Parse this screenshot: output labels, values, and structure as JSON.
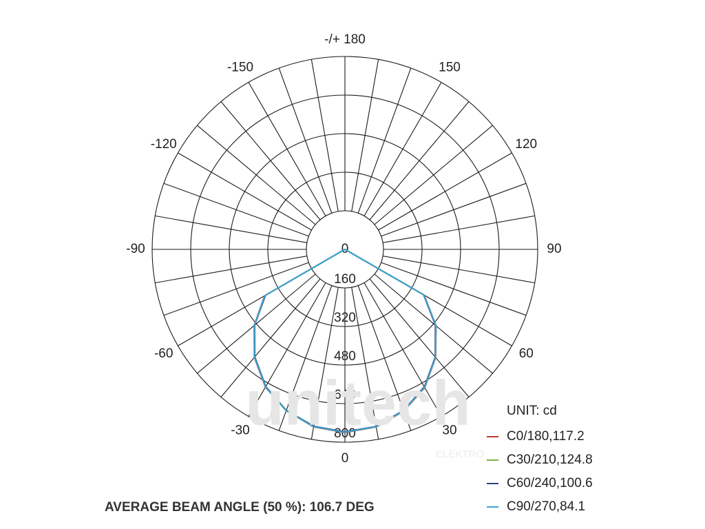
{
  "chart_data": {
    "type": "polar",
    "rlim": [
      0,
      800
    ],
    "rticks": [
      0,
      160,
      320,
      480,
      640,
      800
    ],
    "thetalim": [
      -180,
      180
    ],
    "thetaticks": [
      {
        "value": 180,
        "label": "-/+ 180"
      },
      150,
      120,
      90,
      60,
      30,
      0,
      -30,
      -60,
      -90,
      -120,
      -150
    ],
    "theta_gridlines": [
      -170,
      -160,
      -150,
      -140,
      -130,
      -120,
      -110,
      -100,
      -90,
      -80,
      -70,
      -60,
      -50,
      -40,
      -30,
      -20,
      -10,
      0,
      10,
      20,
      30,
      40,
      50,
      60,
      70,
      80,
      90,
      100,
      110,
      120,
      130,
      140,
      150,
      160,
      170,
      180
    ],
    "x": [
      -90,
      -80,
      -70,
      -60,
      -50,
      -40,
      -30,
      -20,
      -10,
      0,
      10,
      20,
      30,
      40,
      50,
      60,
      70,
      80,
      90
    ],
    "series": [
      {
        "name": "C0/180,117.2",
        "color": "#c0392b",
        "values": [
          0,
          0,
          0,
          385,
          492,
          585,
          660,
          712,
          748,
          760,
          748,
          714,
          662,
          586,
          494,
          380,
          0,
          0,
          0
        ]
      },
      {
        "name": "C30/210,124.8",
        "color": "#7cb342",
        "values": [
          0,
          0,
          0,
          382,
          490,
          583,
          658,
          713,
          746,
          758,
          747,
          713,
          660,
          584,
          492,
          378,
          0,
          0,
          0
        ]
      },
      {
        "name": "C60/240,100.6",
        "color": "#2e3f7f",
        "values": [
          0,
          0,
          0,
          380,
          489,
          582,
          657,
          711,
          745,
          757,
          746,
          711,
          659,
          583,
          490,
          377,
          0,
          0,
          0
        ]
      },
      {
        "name": "C90/270,84.1",
        "color": "#3aa6d0",
        "values": [
          0,
          0,
          0,
          383,
          491,
          584,
          659,
          712,
          747,
          759,
          747,
          712,
          661,
          585,
          493,
          379,
          0,
          0,
          0
        ]
      }
    ],
    "unit_label": "UNIT: cd",
    "footer": "AVERAGE BEAM ANGLE (50 %): 106.7 DEG",
    "watermark": {
      "brand": "unitech",
      "sub": "ELEKTRO"
    }
  }
}
